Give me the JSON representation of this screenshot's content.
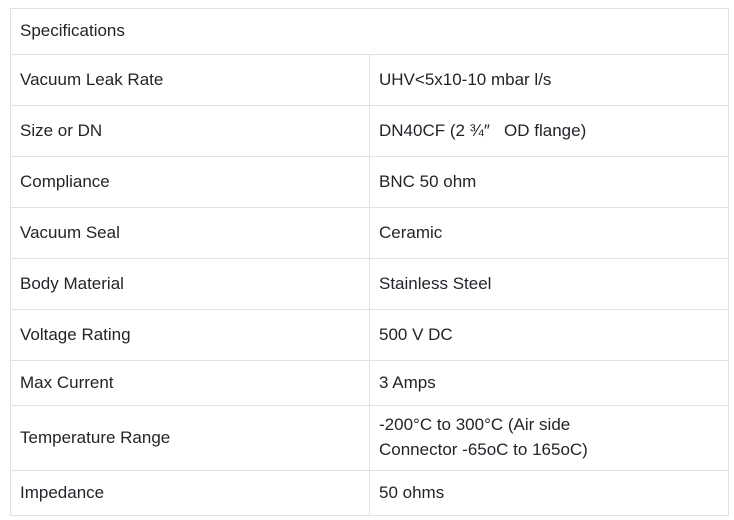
{
  "page": {
    "background_color": "#ffffff",
    "text_color": "#212529",
    "border_color": "#dee2e6"
  },
  "table": {
    "title": "Specifications",
    "rows": [
      {
        "label": "Vacuum Leak Rate",
        "value": "UHV<5x10-10 mbar l/s"
      },
      {
        "label": "Size or DN",
        "value": "DN40CF (2 ¾″   OD flange)"
      },
      {
        "label": "Compliance",
        "value": "BNC 50 ohm"
      },
      {
        "label": "Vacuum Seal",
        "value": "Ceramic"
      },
      {
        "label": "Body Material",
        "value": "Stainless Steel"
      },
      {
        "label": "Voltage Rating",
        "value": "500 V DC"
      },
      {
        "label": "Max Current",
        "value": "3 Amps"
      },
      {
        "label": "Temperature Range",
        "value": "-200°C to 300°C (Air side\nConnector -65oC to 165oC)"
      },
      {
        "label": "Impedance",
        "value": "50 ohms"
      }
    ]
  }
}
